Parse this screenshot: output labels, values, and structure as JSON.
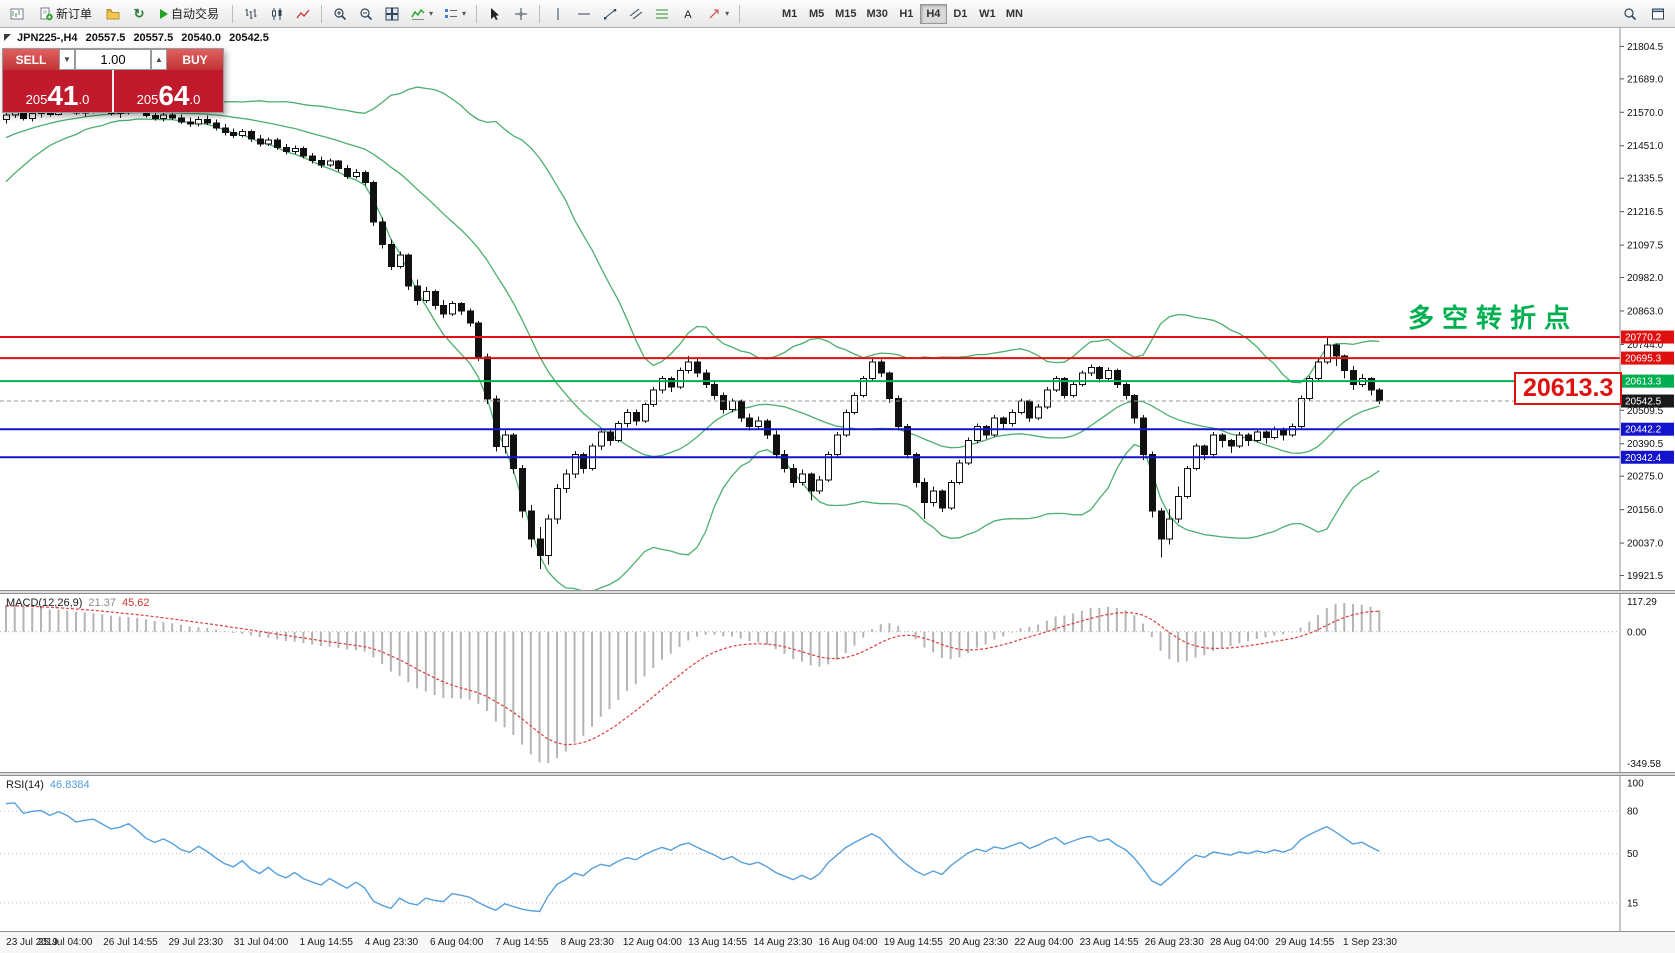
{
  "toolbar": {
    "new_order_label": "新订单",
    "autotrading_label": "自动交易",
    "timeframes": [
      {
        "label": "M1",
        "active": false
      },
      {
        "label": "M5",
        "active": false
      },
      {
        "label": "M15",
        "active": false
      },
      {
        "label": "M30",
        "active": false
      },
      {
        "label": "H1",
        "active": false
      },
      {
        "label": "H4",
        "active": true
      },
      {
        "label": "D1",
        "active": false
      },
      {
        "label": "W1",
        "active": false
      },
      {
        "label": "MN",
        "active": false
      }
    ]
  },
  "symbol_bar": {
    "symbol": "JPN225-,H4",
    "open": "20557.5",
    "high": "20557.5",
    "low": "20540.0",
    "close": "20542.5"
  },
  "trade_panel": {
    "sell_label": "SELL",
    "buy_label": "BUY",
    "volume": "1.00",
    "bid": {
      "prefix": "205",
      "big": "41",
      "frac": ".0"
    },
    "ask": {
      "prefix": "205",
      "big": "64",
      "frac": ".0"
    }
  },
  "annotations": {
    "turning_point": "多空转折点",
    "price_callout": "20613.3"
  },
  "chart_data": {
    "type": "candlestick",
    "symbol": "JPN225-",
    "timeframe": "H4",
    "price_scale": {
      "max": 21870,
      "min": 19870
    },
    "price_axis_ticks": [
      21804.5,
      21689.0,
      21570.0,
      21451.0,
      21335.5,
      21216.5,
      21097.5,
      20982.0,
      20863.0,
      20744.0,
      20625.0,
      20509.5,
      20390.5,
      20275.0,
      20156.0,
      20037.0,
      19921.5
    ],
    "hlines": [
      {
        "price": 20770.2,
        "label": "20770.2",
        "color": "#e01010",
        "width": 2
      },
      {
        "price": 20695.3,
        "label": "20695.3",
        "color": "#e01010",
        "width": 2
      },
      {
        "price": 20613.3,
        "label": "20613.3",
        "color": "#00b050",
        "width": 2
      },
      {
        "price": 20442.2,
        "label": "20442.2",
        "color": "#1414cc",
        "width": 2
      },
      {
        "price": 20342.4,
        "label": "20342.4",
        "color": "#1414cc",
        "width": 2
      }
    ],
    "current_price": {
      "price": 20542.5,
      "label": "20542.5",
      "color": "#1a1a1a"
    },
    "indicators": {
      "bollinger": {
        "period": 20,
        "deviation": 2,
        "color": "#4caf6e"
      },
      "macd": {
        "label": "MACD(12,26,9)",
        "value_main": "21.37",
        "value_signal": "45.62",
        "axis_max": "117.29",
        "axis_zero": "0.00",
        "axis_min": "-349.58",
        "histogram_color": "#b4b4b4",
        "signal_color": "#e03c3c"
      },
      "rsi": {
        "label": "RSI(14)",
        "value": "46.8384",
        "color": "#56a0dc",
        "axis": [
          100,
          80,
          50,
          15
        ],
        "levels": [
          80,
          50,
          15
        ]
      }
    },
    "time_labels": [
      "23 Jul 2019",
      "25 Jul 04:00",
      "26 Jul 14:55",
      "29 Jul 23:30",
      "31 Jul 04:00",
      "1 Aug 14:55",
      "4 Aug 23:30",
      "6 Aug 04:00",
      "7 Aug 14:55",
      "8 Aug 23:30",
      "12 Aug 04:00",
      "13 Aug 14:55",
      "14 Aug 23:30",
      "16 Aug 04:00",
      "19 Aug 14:55",
      "20 Aug 23:30",
      "22 Aug 04:00",
      "23 Aug 14:55",
      "26 Aug 23:30",
      "28 Aug 04:00",
      "29 Aug 14:55",
      "1 Sep 23:30"
    ],
    "prior_closes": [
      21280,
      21310,
      21340,
      21360,
      21390,
      21410,
      21440,
      21460,
      21480,
      21470,
      21500,
      21520,
      21510,
      21530,
      21550,
      21540,
      21560,
      21555,
      21565,
      21550
    ],
    "candles": [
      [
        21545,
        21575,
        21530,
        21560
      ],
      [
        21560,
        21585,
        21550,
        21570
      ],
      [
        21570,
        21580,
        21540,
        21548
      ],
      [
        21548,
        21572,
        21538,
        21565
      ],
      [
        21565,
        21590,
        21552,
        21572
      ],
      [
        21572,
        21588,
        21555,
        21562
      ],
      [
        21562,
        21598,
        21558,
        21590
      ],
      [
        21590,
        21620,
        21575,
        21582
      ],
      [
        21582,
        21595,
        21560,
        21568
      ],
      [
        21568,
        21585,
        21555,
        21578
      ],
      [
        21578,
        21592,
        21565,
        21585
      ],
      [
        21585,
        21595,
        21570,
        21575
      ],
      [
        21575,
        21588,
        21558,
        21565
      ],
      [
        21565,
        21580,
        21550,
        21572
      ],
      [
        21572,
        21595,
        21562,
        21588
      ],
      [
        21588,
        21598,
        21568,
        21575
      ],
      [
        21575,
        21585,
        21552,
        21558
      ],
      [
        21558,
        21572,
        21540,
        21548
      ],
      [
        21548,
        21568,
        21538,
        21560
      ],
      [
        21560,
        21575,
        21542,
        21550
      ],
      [
        21550,
        21562,
        21528,
        21535
      ],
      [
        21535,
        21552,
        21518,
        21528
      ],
      [
        21528,
        21555,
        21520,
        21545
      ],
      [
        21545,
        21558,
        21525,
        21532
      ],
      [
        21532,
        21545,
        21505,
        21515
      ],
      [
        21515,
        21528,
        21488,
        21498
      ],
      [
        21498,
        21512,
        21478,
        21488
      ],
      [
        21488,
        21510,
        21480,
        21502
      ],
      [
        21502,
        21508,
        21465,
        21475
      ],
      [
        21475,
        21490,
        21448,
        21458
      ],
      [
        21458,
        21480,
        21450,
        21472
      ],
      [
        21472,
        21478,
        21435,
        21445
      ],
      [
        21445,
        21458,
        21420,
        21430
      ],
      [
        21430,
        21452,
        21422,
        21442
      ],
      [
        21442,
        21448,
        21405,
        21415
      ],
      [
        21415,
        21425,
        21388,
        21398
      ],
      [
        21398,
        21412,
        21372,
        21382
      ],
      [
        21382,
        21405,
        21375,
        21396
      ],
      [
        21396,
        21400,
        21360,
        21370
      ],
      [
        21370,
        21382,
        21332,
        21342
      ],
      [
        21342,
        21368,
        21335,
        21356
      ],
      [
        21356,
        21362,
        21310,
        21320
      ],
      [
        21320,
        21328,
        21165,
        21180
      ],
      [
        21180,
        21195,
        21085,
        21100
      ],
      [
        21100,
        21118,
        21008,
        21022
      ],
      [
        21022,
        21075,
        21015,
        21062
      ],
      [
        21062,
        21068,
        20938,
        20952
      ],
      [
        20952,
        20975,
        20885,
        20900
      ],
      [
        20900,
        20948,
        20892,
        20932
      ],
      [
        20932,
        20940,
        20868,
        20882
      ],
      [
        20882,
        20902,
        20838,
        20852
      ],
      [
        20852,
        20898,
        20845,
        20890
      ],
      [
        20890,
        20895,
        20848,
        20862
      ],
      [
        20862,
        20872,
        20808,
        20820
      ],
      [
        20820,
        20828,
        20685,
        20700
      ],
      [
        20700,
        20712,
        20532,
        20550
      ],
      [
        20550,
        20562,
        20362,
        20380
      ],
      [
        20380,
        20438,
        20355,
        20422
      ],
      [
        20422,
        20428,
        20285,
        20302
      ],
      [
        20302,
        20315,
        20128,
        20152
      ],
      [
        20152,
        20172,
        20022,
        20052
      ],
      [
        20052,
        20095,
        19945,
        19992
      ],
      [
        19992,
        20138,
        19960,
        20122
      ],
      [
        20122,
        20248,
        20105,
        20232
      ],
      [
        20232,
        20298,
        20215,
        20282
      ],
      [
        20282,
        20365,
        20268,
        20352
      ],
      [
        20352,
        20360,
        20285,
        20302
      ],
      [
        20302,
        20392,
        20295,
        20382
      ],
      [
        20382,
        20445,
        20368,
        20432
      ],
      [
        20432,
        20440,
        20385,
        20402
      ],
      [
        20402,
        20472,
        20395,
        20462
      ],
      [
        20462,
        20515,
        20448,
        20502
      ],
      [
        20502,
        20512,
        20455,
        20472
      ],
      [
        20472,
        20538,
        20465,
        20530
      ],
      [
        20530,
        20592,
        20522,
        20582
      ],
      [
        20582,
        20632,
        20570,
        20622
      ],
      [
        20622,
        20630,
        20575,
        20592
      ],
      [
        20592,
        20662,
        20585,
        20652
      ],
      [
        20652,
        20702,
        20640,
        20682
      ],
      [
        20682,
        20692,
        20628,
        20642
      ],
      [
        20642,
        20655,
        20588,
        20602
      ],
      [
        20602,
        20618,
        20548,
        20562
      ],
      [
        20562,
        20572,
        20498,
        20512
      ],
      [
        20512,
        20552,
        20502,
        20542
      ],
      [
        20542,
        20548,
        20468,
        20482
      ],
      [
        20482,
        20498,
        20438,
        20452
      ],
      [
        20452,
        20488,
        20442,
        20472
      ],
      [
        20472,
        20478,
        20408,
        20422
      ],
      [
        20422,
        20438,
        20338,
        20352
      ],
      [
        20352,
        20368,
        20288,
        20302
      ],
      [
        20302,
        20318,
        20235,
        20252
      ],
      [
        20252,
        20298,
        20242,
        20282
      ],
      [
        20282,
        20288,
        20188,
        20222
      ],
      [
        20222,
        20275,
        20212,
        20262
      ],
      [
        20262,
        20362,
        20255,
        20352
      ],
      [
        20352,
        20432,
        20345,
        20422
      ],
      [
        20422,
        20512,
        20415,
        20502
      ],
      [
        20502,
        20572,
        20495,
        20562
      ],
      [
        20562,
        20632,
        20555,
        20622
      ],
      [
        20622,
        20698,
        20615,
        20682
      ],
      [
        20682,
        20690,
        20628,
        20642
      ],
      [
        20642,
        20648,
        20535,
        20552
      ],
      [
        20552,
        20562,
        20438,
        20452
      ],
      [
        20452,
        20460,
        20338,
        20352
      ],
      [
        20352,
        20360,
        20235,
        20252
      ],
      [
        20252,
        20268,
        20122,
        20182
      ],
      [
        20182,
        20238,
        20168,
        20222
      ],
      [
        20222,
        20228,
        20148,
        20162
      ],
      [
        20162,
        20262,
        20155,
        20252
      ],
      [
        20252,
        20332,
        20245,
        20322
      ],
      [
        20322,
        20412,
        20315,
        20402
      ],
      [
        20402,
        20462,
        20392,
        20452
      ],
      [
        20452,
        20458,
        20408,
        20422
      ],
      [
        20422,
        20492,
        20415,
        20482
      ],
      [
        20482,
        20488,
        20442,
        20462
      ],
      [
        20462,
        20512,
        20452,
        20502
      ],
      [
        20502,
        20552,
        20495,
        20542
      ],
      [
        20542,
        20548,
        20468,
        20482
      ],
      [
        20482,
        20532,
        20475,
        20522
      ],
      [
        20522,
        20592,
        20515,
        20582
      ],
      [
        20582,
        20632,
        20575,
        20622
      ],
      [
        20622,
        20628,
        20552,
        20562
      ],
      [
        20562,
        20612,
        20555,
        20602
      ],
      [
        20602,
        20652,
        20595,
        20642
      ],
      [
        20642,
        20672,
        20632,
        20662
      ],
      [
        20662,
        20668,
        20608,
        20622
      ],
      [
        20622,
        20662,
        20615,
        20652
      ],
      [
        20652,
        20658,
        20588,
        20602
      ],
      [
        20602,
        20608,
        20548,
        20562
      ],
      [
        20562,
        20568,
        20462,
        20482
      ],
      [
        20482,
        20492,
        20332,
        20352
      ],
      [
        20352,
        20362,
        20128,
        20152
      ],
      [
        20152,
        20162,
        19985,
        20052
      ],
      [
        20052,
        20158,
        20032,
        20122
      ],
      [
        20122,
        20238,
        20108,
        20202
      ],
      [
        20202,
        20312,
        20195,
        20302
      ],
      [
        20302,
        20392,
        20295,
        20382
      ],
      [
        20382,
        20388,
        20332,
        20352
      ],
      [
        20352,
        20432,
        20345,
        20422
      ],
      [
        20422,
        20428,
        20378,
        20402
      ],
      [
        20402,
        20408,
        20358,
        20382
      ],
      [
        20382,
        20432,
        20375,
        20422
      ],
      [
        20422,
        20428,
        20382,
        20402
      ],
      [
        20402,
        20442,
        20395,
        20432
      ],
      [
        20432,
        20438,
        20392,
        20412
      ],
      [
        20412,
        20452,
        20405,
        20442
      ],
      [
        20442,
        20448,
        20402,
        20422
      ],
      [
        20422,
        20462,
        20415,
        20452
      ],
      [
        20452,
        20562,
        20445,
        20552
      ],
      [
        20552,
        20632,
        20545,
        20622
      ],
      [
        20622,
        20692,
        20615,
        20682
      ],
      [
        20682,
        20772,
        20675,
        20742
      ],
      [
        20742,
        20748,
        20668,
        20702
      ],
      [
        20702,
        20708,
        20622,
        20652
      ],
      [
        20652,
        20668,
        20582,
        20602
      ],
      [
        20602,
        20638,
        20592,
        20622
      ],
      [
        20622,
        20628,
        20562,
        20582
      ],
      [
        20582,
        20588,
        20532,
        20542.5
      ]
    ]
  }
}
